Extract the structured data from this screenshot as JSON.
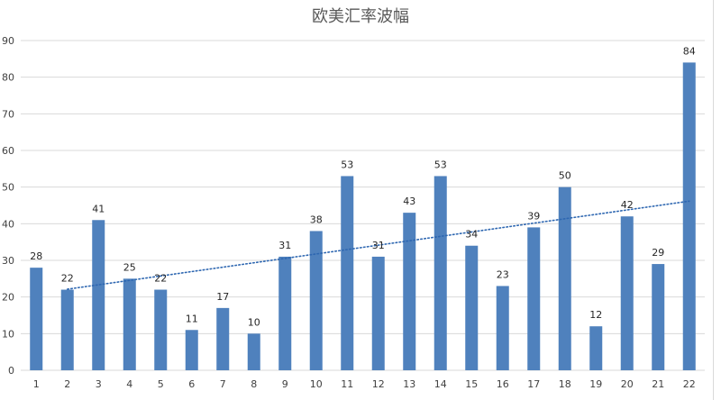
{
  "chart_data": {
    "type": "bar",
    "title": "欧美汇率波幅",
    "categories": [
      "1",
      "2",
      "3",
      "4",
      "5",
      "6",
      "7",
      "8",
      "9",
      "10",
      "11",
      "12",
      "13",
      "14",
      "15",
      "16",
      "17",
      "18",
      "19",
      "20",
      "21",
      "22"
    ],
    "values": [
      28,
      22,
      41,
      25,
      22,
      11,
      17,
      10,
      31,
      38,
      53,
      31,
      43,
      53,
      34,
      23,
      39,
      50,
      12,
      42,
      29,
      84
    ],
    "ylim": [
      0,
      90
    ],
    "yticks": [
      0,
      10,
      20,
      30,
      40,
      50,
      60,
      70,
      80,
      90
    ],
    "grid": true,
    "data_labels": true,
    "trendline": {
      "type": "linear",
      "style": "dotted"
    },
    "colors": {
      "bar": "#4f81bd",
      "grid": "#d9d9d9",
      "trend": "#2e67b1"
    }
  }
}
